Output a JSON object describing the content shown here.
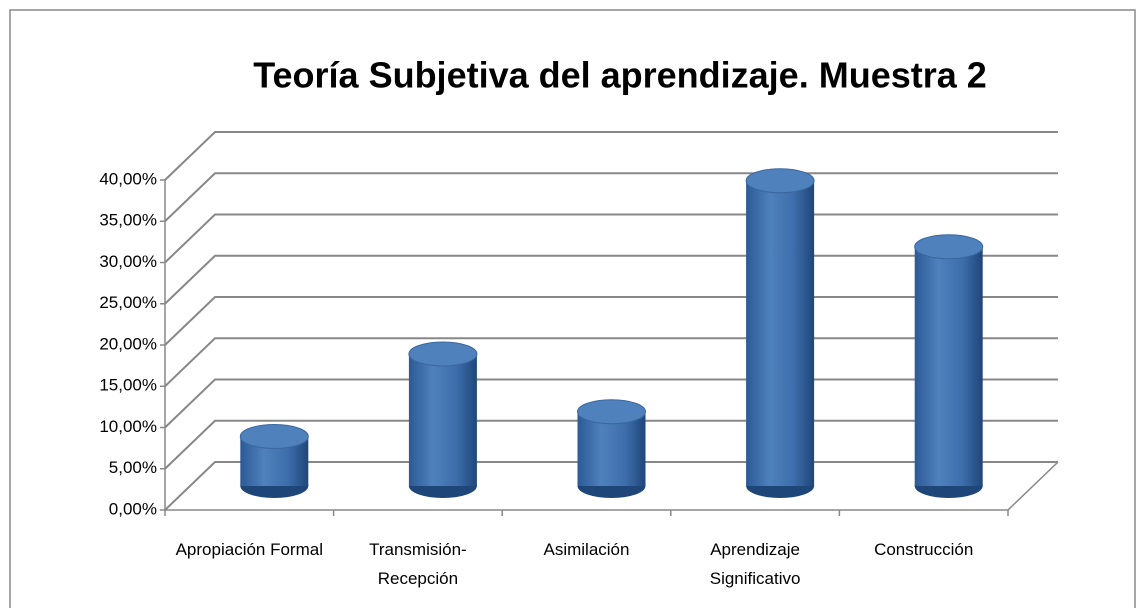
{
  "chart_data": {
    "type": "bar3d",
    "title": "Teoría Subjetiva del aprendizaje. Muestra 2",
    "categories": [
      "Apropiación Formal",
      "Transmisión-Recepción",
      "Asimilación",
      "Aprendizaje Significativo",
      "Construcción"
    ],
    "values": [
      6,
      16,
      9,
      37,
      29
    ],
    "color": "#4f81bd",
    "ylim": [
      0,
      40
    ],
    "yticks": [
      {
        "value": 0,
        "label": "0,00%"
      },
      {
        "value": 5,
        "label": "5,00%"
      },
      {
        "value": 10,
        "label": "10,00%"
      },
      {
        "value": 15,
        "label": "15,00%"
      },
      {
        "value": 20,
        "label": "20,00%"
      },
      {
        "value": 25,
        "label": "25,00%"
      },
      {
        "value": 30,
        "label": "30,00%"
      },
      {
        "value": 35,
        "label": "35,00%"
      },
      {
        "value": 40,
        "label": "40,00%"
      }
    ],
    "grid": true
  }
}
